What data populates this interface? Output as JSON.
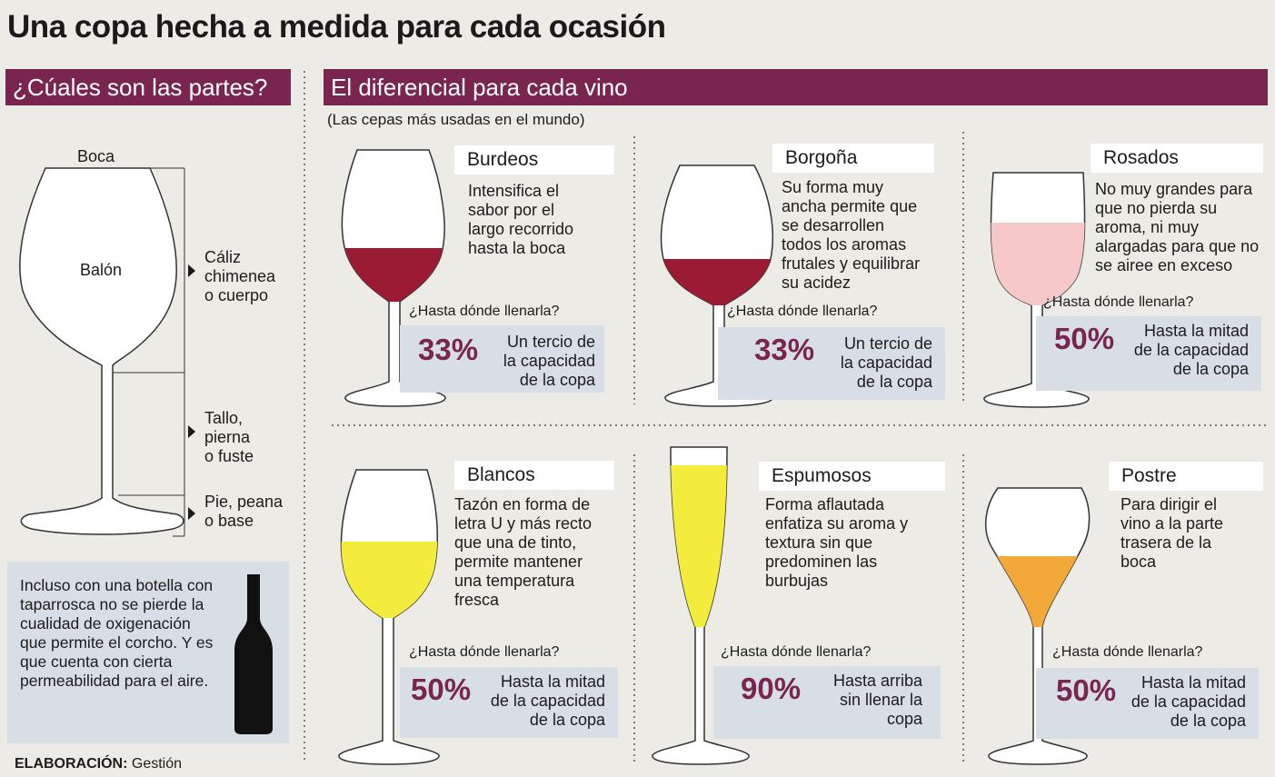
{
  "title": "Una copa hecha a medida para cada ocasión",
  "left": {
    "header": "¿Cúales son las partes?",
    "parts": {
      "boca": "Boca",
      "balon": "Balón",
      "caliz": [
        "Cáliz",
        "chimenea",
        "o cuerpo"
      ],
      "tallo": [
        "Tallo,",
        "pierna",
        "o fuste"
      ],
      "pie": [
        "Pie, peana",
        "o base"
      ]
    },
    "note": "Incluso con una botella con taparrosca no se pierde la cualidad de oxigenación que permite el corcho. Y es que cuenta con cierta permeabilidad para el aire.",
    "bottle_icon": "wine-bottle-icon"
  },
  "right": {
    "header": "El diferencial para cada vino",
    "subtitle": "(Las cepas más usadas en el mundo)",
    "question": "¿Hasta dónde llenarla?",
    "wines": [
      {
        "name": "Burdeos",
        "desc": [
          "Intensifica el",
          "sabor por el",
          "largo recorrido",
          "hasta la boca"
        ],
        "percent": "33%",
        "fill": [
          "Un tercio de",
          "la capacidad",
          "de la copa"
        ],
        "color": "#9b1b35"
      },
      {
        "name": "Borgoña",
        "desc": [
          "Su forma muy",
          "ancha permite que",
          "se desarrollen",
          "todos los aromas",
          "frutales y equilibrar",
          "su acidez"
        ],
        "percent": "33%",
        "fill": [
          "Un tercio de",
          "la capacidad",
          "de la copa"
        ],
        "color": "#9b1b35"
      },
      {
        "name": "Rosados",
        "desc": [
          "No muy grandes para",
          "que no pierda su",
          "aroma, ni muy",
          "alargadas para que no",
          "se airee en exceso"
        ],
        "percent": "50%",
        "fill": [
          "Hasta la mitad",
          "de la capacidad",
          "de la copa"
        ],
        "color": "#f6c8c9"
      },
      {
        "name": "Blancos",
        "desc": [
          "Tazón en forma de",
          "letra U y más recto",
          "que una de tinto,",
          "permite mantener",
          "una temperatura",
          "fresca"
        ],
        "percent": "50%",
        "fill": [
          "Hasta la  mitad",
          "de la capacidad",
          "de la copa"
        ],
        "color": "#f3ec3c"
      },
      {
        "name": "Espumosos",
        "desc": [
          "Forma aflautada",
          "enfatiza su aroma y",
          "textura sin que",
          "predominen las",
          "burbujas"
        ],
        "percent": "90%",
        "fill": [
          "Hasta arriba",
          "sin llenar la",
          "copa"
        ],
        "color": "#f3ec3c"
      },
      {
        "name": "Postre",
        "desc": [
          "Para dirigir el",
          "vino a la parte",
          "trasera de la",
          "boca"
        ],
        "percent": "50%",
        "fill": [
          "Hasta la  mitad",
          "de la capacidad",
          "de la copa"
        ],
        "color": "#f2a93a"
      }
    ]
  },
  "credit": {
    "label": "ELABORACIÓN:",
    "source": "Gestión"
  },
  "colors": {
    "accent": "#7a2450",
    "background": "#ecebe6",
    "info_box": "#d8dee6"
  }
}
